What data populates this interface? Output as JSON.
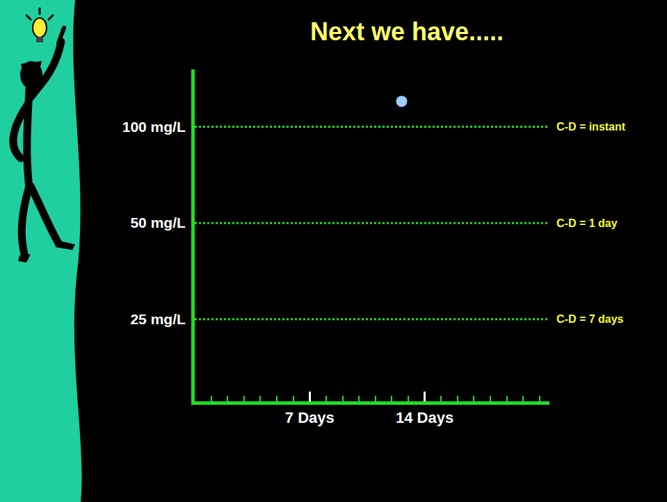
{
  "chart_data": {
    "type": "scatter",
    "title": "Next we have.....",
    "x": [
      12.6
    ],
    "values": [
      120
    ],
    "color": "#99ccff",
    "marker": "circle",
    "xlim": [
      0,
      21.6
    ],
    "ylim": [
      13.85,
      151
    ],
    "log": "y",
    "xticks": [
      {
        "value": 7,
        "label": "7 Days"
      },
      {
        "value": 14,
        "label": "14 Days"
      }
    ],
    "x_minor_ticks": [
      1,
      2,
      3,
      4,
      5,
      6,
      7,
      8,
      9,
      10,
      11,
      12,
      13,
      14,
      15,
      16,
      17,
      18,
      19,
      20,
      21
    ],
    "yticks": [
      {
        "value": 25,
        "label": "25 mg/L"
      },
      {
        "value": 50,
        "label": "50 mg/L"
      },
      {
        "value": 100,
        "label": "100 mg/L"
      }
    ],
    "levels": [
      {
        "value": 100,
        "label": "C-D = instant"
      },
      {
        "value": 50,
        "label": "C-D = 1 day"
      },
      {
        "value": 25,
        "label": "C-D = 7 days"
      }
    ],
    "grid": false
  }
}
